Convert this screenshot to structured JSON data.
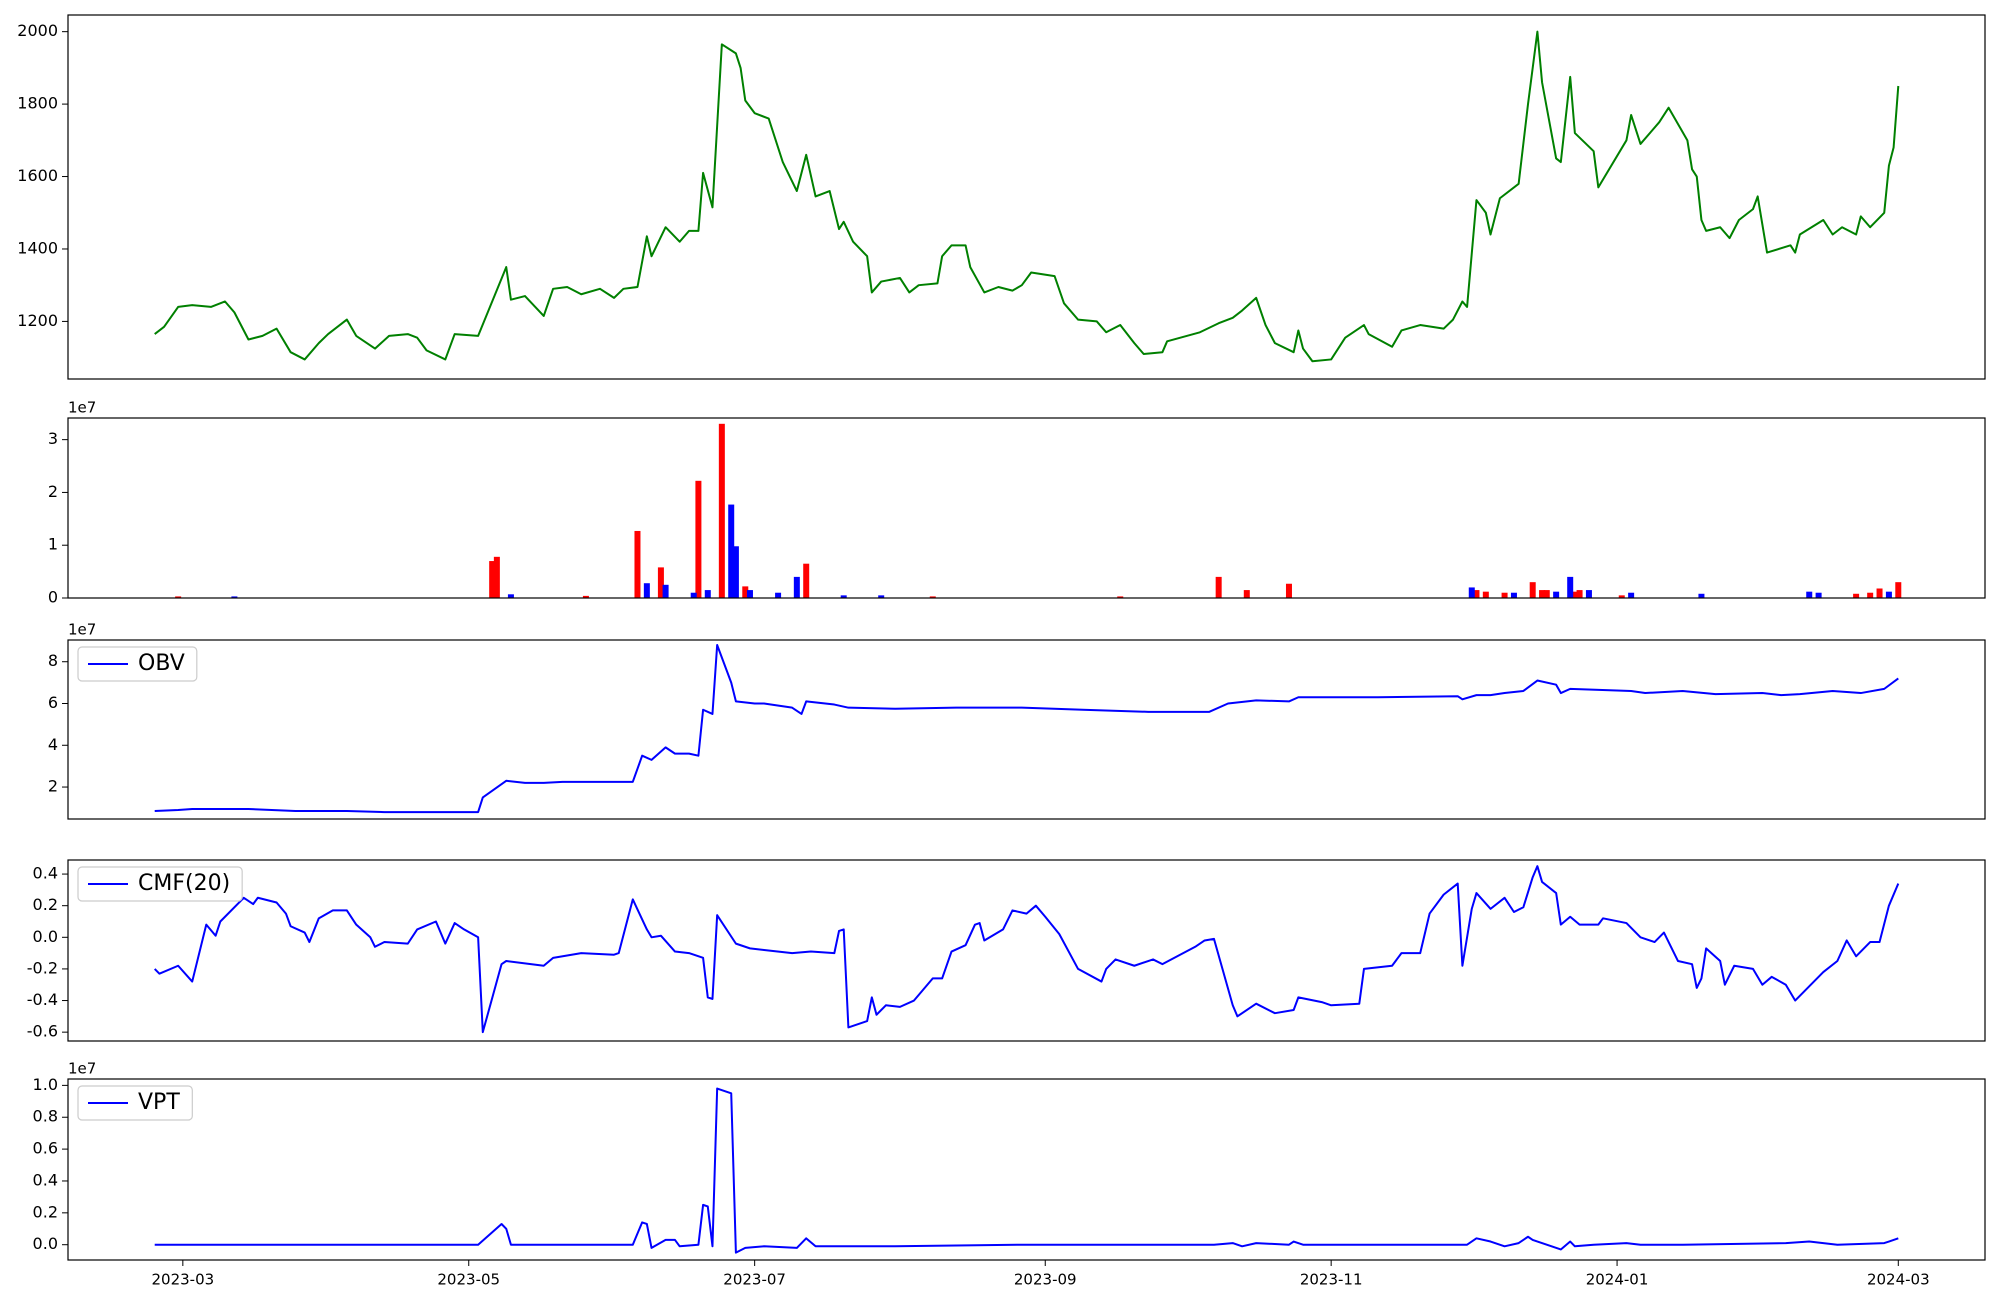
{
  "chart_data": [
    {
      "type": "line",
      "color": "green",
      "xlim": [
        -24.5,
        384.5
      ],
      "ylim": [
        1041,
        2046
      ],
      "yticks": [
        1200,
        1400,
        1600,
        1800,
        2000
      ],
      "x": [
        -6,
        -4,
        -1,
        2,
        6,
        9,
        11,
        14,
        17,
        20,
        23,
        26,
        29,
        31,
        35,
        37,
        41,
        44,
        48,
        50,
        52,
        56,
        58,
        63,
        69,
        70,
        73,
        77,
        79,
        82,
        85,
        89,
        92,
        94,
        97,
        99,
        100,
        103,
        106,
        108,
        110,
        111,
        113,
        115,
        118,
        119,
        120,
        122,
        125,
        128,
        131,
        133,
        135,
        138,
        140,
        141,
        143,
        146,
        147,
        149,
        153,
        155,
        157,
        161,
        162,
        164,
        167,
        168,
        171,
        174,
        177,
        179,
        181,
        186,
        188,
        191,
        195,
        197,
        200,
        203,
        205,
        209,
        210,
        217,
        221,
        224,
        226,
        229,
        231,
        233,
        237,
        238,
        239,
        241,
        245,
        248,
        252,
        253,
        258,
        260,
        264,
        269,
        271,
        273,
        274,
        276,
        278,
        279,
        281,
        285,
        287,
        289,
        290,
        293,
        294,
        296,
        297,
        301,
        302,
        308,
        309,
        311,
        315,
        317,
        321,
        322,
        323,
        324,
        325,
        328,
        330,
        332,
        335,
        336,
        338,
        343,
        344,
        345,
        350,
        352,
        354,
        357,
        358,
        360,
        363,
        364,
        365,
        366
      ],
      "values": [
        1165,
        1185,
        1240,
        1245,
        1240,
        1255,
        1225,
        1150,
        1160,
        1180,
        1115,
        1095,
        1140,
        1165,
        1205,
        1160,
        1125,
        1160,
        1165,
        1155,
        1120,
        1095,
        1165,
        1160,
        1350,
        1260,
        1270,
        1215,
        1290,
        1295,
        1275,
        1290,
        1265,
        1290,
        1295,
        1435,
        1380,
        1460,
        1420,
        1450,
        1450,
        1610,
        1515,
        1965,
        1940,
        1900,
        1810,
        1775,
        1760,
        1640,
        1560,
        1660,
        1545,
        1560,
        1455,
        1475,
        1420,
        1380,
        1280,
        1310,
        1320,
        1280,
        1300,
        1305,
        1380,
        1410,
        1410,
        1350,
        1280,
        1295,
        1285,
        1300,
        1335,
        1325,
        1250,
        1205,
        1200,
        1170,
        1190,
        1140,
        1110,
        1115,
        1145,
        1170,
        1195,
        1210,
        1230,
        1265,
        1190,
        1140,
        1115,
        1175,
        1125,
        1090,
        1095,
        1155,
        1190,
        1165,
        1130,
        1175,
        1190,
        1180,
        1205,
        1255,
        1240,
        1535,
        1500,
        1440,
        1540,
        1580,
        1800,
        2000,
        1860,
        1650,
        1640,
        1875,
        1720,
        1670,
        1570,
        1700,
        1770,
        1690,
        1750,
        1790,
        1700,
        1620,
        1600,
        1480,
        1450,
        1460,
        1430,
        1480,
        1510,
        1545,
        1390,
        1410,
        1390,
        1440,
        1480,
        1440,
        1460,
        1440,
        1490,
        1460,
        1500,
        1630,
        1680,
        1850
      ]
    },
    {
      "type": "bar",
      "offset_text": "1e7",
      "xlim": [
        -24.5,
        384.5
      ],
      "ylim": [
        0,
        3.41
      ],
      "yticks": [
        0,
        1,
        2,
        3
      ],
      "series": [
        {
          "color": "red",
          "x": [
            -1,
            66,
            67,
            86,
            97,
            102,
            110,
            115,
            120,
            133,
            160,
            200,
            221,
            227,
            236,
            276,
            278,
            282,
            288,
            290,
            291,
            297,
            298,
            307,
            357,
            360,
            362,
            366
          ],
          "values": [
            0.03,
            0.7,
            0.78,
            0.04,
            1.27,
            0.58,
            2.22,
            3.3,
            0.22,
            0.65,
            0.03,
            0.03,
            0.4,
            0.15,
            0.27,
            0.15,
            0.12,
            0.1,
            0.3,
            0.15,
            0.15,
            0.12,
            0.15,
            0.05,
            0.08,
            0.1,
            0.18,
            0.3
          ]
        },
        {
          "color": "blue",
          "x": [
            11,
            70,
            99,
            103,
            109,
            112,
            117,
            118,
            121,
            127,
            131,
            141,
            149,
            275,
            284,
            293,
            296,
            300,
            309,
            324,
            347,
            349,
            364
          ],
          "values": [
            0.03,
            0.07,
            0.28,
            0.25,
            0.1,
            0.15,
            1.77,
            0.98,
            0.15,
            0.1,
            0.4,
            0.05,
            0.05,
            0.2,
            0.1,
            0.12,
            0.4,
            0.15,
            0.1,
            0.08,
            0.12,
            0.1,
            0.12
          ]
        }
      ]
    },
    {
      "type": "line",
      "offset_text": "1e7",
      "legend": "upper left",
      "xlim": [
        -24.5,
        384.5
      ],
      "ylim": [
        0.47,
        9.04
      ],
      "yticks": [
        2,
        4,
        6,
        8
      ],
      "x": [
        -6,
        -1,
        2,
        9,
        14,
        24,
        35,
        43,
        56,
        63,
        64,
        69,
        73,
        77,
        81,
        89,
        96,
        98,
        100,
        103,
        105,
        108,
        110,
        111,
        113,
        114,
        117,
        118,
        122,
        124,
        130,
        132,
        133,
        139,
        142,
        152,
        165,
        179,
        192,
        206,
        219,
        223,
        229,
        236,
        238,
        255,
        272,
        273,
        276,
        279,
        282,
        286,
        289,
        293,
        294,
        296,
        309,
        312,
        320,
        327,
        337,
        341,
        345,
        352,
        358,
        363,
        366
      ],
      "series": [
        {
          "name": "OBV",
          "color": "blue",
          "values": [
            0.85,
            0.9,
            0.95,
            0.95,
            0.95,
            0.85,
            0.85,
            0.8,
            0.8,
            0.8,
            1.5,
            2.3,
            2.2,
            2.2,
            2.25,
            2.25,
            2.25,
            3.5,
            3.3,
            3.9,
            3.6,
            3.6,
            3.5,
            5.7,
            5.5,
            8.8,
            7.0,
            6.1,
            6.0,
            6.0,
            5.8,
            5.5,
            6.1,
            5.95,
            5.8,
            5.75,
            5.8,
            5.8,
            5.7,
            5.6,
            5.6,
            6.0,
            6.15,
            6.1,
            6.3,
            6.3,
            6.35,
            6.2,
            6.4,
            6.4,
            6.5,
            6.6,
            7.1,
            6.9,
            6.5,
            6.7,
            6.6,
            6.5,
            6.6,
            6.45,
            6.5,
            6.4,
            6.45,
            6.6,
            6.5,
            6.7,
            7.2
          ]
        }
      ]
    },
    {
      "type": "line",
      "legend": "upper left",
      "xlim": [
        -24.5,
        384.5
      ],
      "ylim": [
        -0.656,
        0.489
      ],
      "yticks": [
        -0.6,
        -0.4,
        -0.2,
        {
          "value": 0,
          "label": "0.0"
        },
        0.2,
        0.4
      ],
      "x": [
        -6,
        -5,
        -1,
        2,
        5,
        7,
        8,
        13,
        15,
        16,
        20,
        22,
        23,
        26,
        27,
        29,
        32,
        35,
        37,
        40,
        41,
        43,
        48,
        50,
        54,
        56,
        58,
        60,
        63,
        64,
        68,
        69,
        77,
        79,
        85,
        92,
        93,
        96,
        99,
        100,
        102,
        105,
        108,
        111,
        112,
        113,
        114,
        118,
        121,
        124,
        130,
        134,
        139,
        140,
        141,
        142,
        146,
        147,
        148,
        150,
        153,
        156,
        160,
        162,
        164,
        167,
        169,
        170,
        171,
        175,
        177,
        180,
        182,
        184,
        187,
        191,
        196,
        197,
        199,
        203,
        207,
        209,
        216,
        218,
        220,
        224,
        225,
        229,
        233,
        237,
        238,
        243,
        245,
        251,
        252,
        258,
        260,
        264,
        266,
        269,
        272,
        273,
        275,
        276,
        279,
        282,
        284,
        286,
        288,
        289,
        290,
        293,
        294,
        296,
        298,
        302,
        303,
        308,
        311,
        314,
        316,
        319,
        322,
        323,
        324,
        325,
        328,
        329,
        331,
        335,
        337,
        339,
        342,
        344,
        350,
        353,
        355,
        357,
        359,
        360,
        362,
        364,
        366
      ],
      "series": [
        {
          "name": "CMF(20)",
          "color": "blue",
          "values": [
            -0.2,
            -0.23,
            -0.18,
            -0.28,
            0.08,
            0.01,
            0.1,
            0.25,
            0.21,
            0.25,
            0.22,
            0.15,
            0.07,
            0.03,
            -0.03,
            0.12,
            0.17,
            0.17,
            0.08,
            0.0,
            -0.06,
            -0.03,
            -0.04,
            0.05,
            0.1,
            -0.04,
            0.09,
            0.05,
            0.0,
            -0.6,
            -0.17,
            -0.15,
            -0.18,
            -0.13,
            -0.1,
            -0.11,
            -0.1,
            0.24,
            0.05,
            0.0,
            0.01,
            -0.09,
            -0.1,
            -0.13,
            -0.38,
            -0.39,
            0.14,
            -0.04,
            -0.07,
            -0.08,
            -0.1,
            -0.09,
            -0.1,
            0.04,
            0.05,
            -0.57,
            -0.53,
            -0.38,
            -0.49,
            -0.43,
            -0.44,
            -0.4,
            -0.26,
            -0.26,
            -0.09,
            -0.05,
            0.08,
            0.09,
            -0.02,
            0.05,
            0.17,
            0.15,
            0.2,
            0.13,
            0.02,
            -0.2,
            -0.28,
            -0.2,
            -0.14,
            -0.18,
            -0.14,
            -0.17,
            -0.06,
            -0.02,
            -0.01,
            -0.43,
            -0.5,
            -0.42,
            -0.48,
            -0.46,
            -0.38,
            -0.41,
            -0.43,
            -0.42,
            -0.2,
            -0.18,
            -0.1,
            -0.1,
            0.15,
            0.27,
            0.34,
            -0.18,
            0.18,
            0.28,
            0.18,
            0.25,
            0.16,
            0.19,
            0.38,
            0.45,
            0.35,
            0.28,
            0.08,
            0.13,
            0.08,
            0.08,
            0.12,
            0.09,
            0.0,
            -0.03,
            0.03,
            -0.15,
            -0.17,
            -0.32,
            -0.26,
            -0.07,
            -0.15,
            -0.3,
            -0.18,
            -0.2,
            -0.3,
            -0.25,
            -0.3,
            -0.4,
            -0.22,
            -0.15,
            -0.02,
            -0.12,
            -0.06,
            -0.03,
            -0.03,
            0.2,
            0.34
          ]
        }
      ]
    },
    {
      "type": "line",
      "offset_text": "1e7",
      "legend": "upper left",
      "xlim": [
        -24.5,
        384.5
      ],
      "ylim": [
        -0.096,
        1.04
      ],
      "yticks": [
        {
          "value": 0,
          "label": "0.0"
        },
        0.2,
        0.4,
        0.6,
        0.8,
        {
          "value": 1,
          "label": "1.0"
        }
      ],
      "xticks": [
        {
          "value": 0,
          "label": "2023-03"
        },
        {
          "value": 61,
          "label": "2023-05"
        },
        {
          "value": 122,
          "label": "2023-07"
        },
        {
          "value": 184,
          "label": "2023-09"
        },
        {
          "value": 245,
          "label": "2023-11"
        },
        {
          "value": 306,
          "label": "2024-01"
        },
        {
          "value": 366,
          "label": "2024-03"
        }
      ],
      "x": [
        -6,
        16,
        63,
        68,
        69,
        70,
        78,
        96,
        98,
        99,
        100,
        103,
        105,
        106,
        110,
        111,
        112,
        113,
        114,
        117,
        118,
        120,
        124,
        131,
        133,
        135,
        141,
        152,
        179,
        220,
        224,
        226,
        229,
        236,
        237,
        239,
        260,
        274,
        276,
        279,
        282,
        285,
        287,
        288,
        294,
        296,
        297,
        301,
        308,
        311,
        320,
        342,
        347,
        353,
        363,
        364,
        366
      ],
      "series": [
        {
          "name": "VPT",
          "color": "blue",
          "values": [
            0,
            0,
            0,
            0.13,
            0.1,
            0,
            0,
            0,
            0.14,
            0.13,
            -0.02,
            0.03,
            0.03,
            -0.01,
            0,
            0.25,
            0.24,
            -0.01,
            0.98,
            0.95,
            -0.05,
            -0.02,
            -0.01,
            -0.02,
            0.04,
            -0.01,
            -0.01,
            -0.01,
            0,
            0,
            0.01,
            -0.01,
            0.01,
            0,
            0.02,
            0,
            0,
            0,
            0.04,
            0.02,
            -0.01,
            0.01,
            0.05,
            0.03,
            -0.03,
            0.02,
            -0.01,
            0,
            0.01,
            0,
            0,
            0.01,
            0.02,
            0,
            0.01,
            0.02,
            0.04
          ]
        }
      ]
    }
  ]
}
